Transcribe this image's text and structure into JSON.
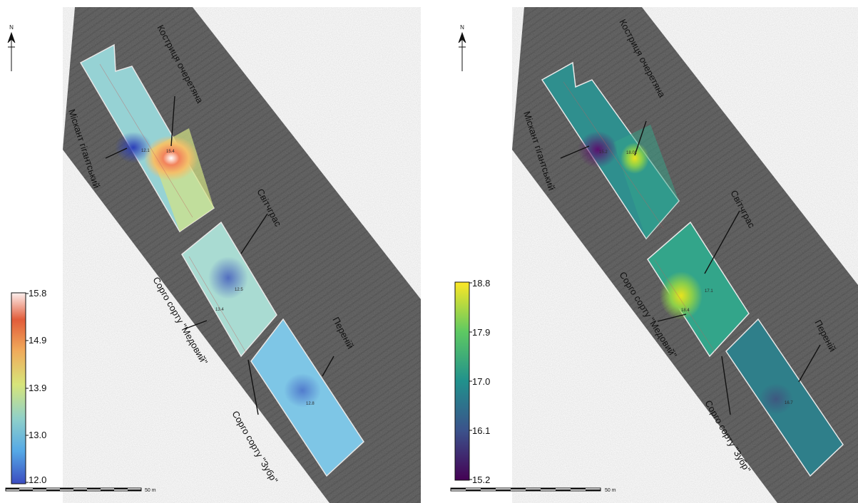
{
  "caption_text": "",
  "compass_letter": "N",
  "scale_label": "50 m",
  "colors": {
    "background": "#ffffff",
    "field_annotation": "#111111"
  },
  "panels": [
    {
      "id": "left",
      "legend": {
        "ticks": [
          "15.8",
          "14.9",
          "13.9",
          "13.0",
          "12.0"
        ],
        "colormap": [
          "#3b4cc0",
          "#55a8e6",
          "#8fd0c9",
          "#d7e57a",
          "#f0a95a",
          "#e25c3a",
          "#fdf0ee"
        ]
      },
      "labels": {
        "kostrytsia": "Костриця очеретяна",
        "miskantus": "Міскант гігантський",
        "svichgras": "Світчграс",
        "medovyi": "Сорго сорту \"Медовий\"",
        "perenii": "Пеpeнiй",
        "zubr": "Сорго сорту \"Зубр\""
      },
      "point_values": [
        "12.1",
        "15.4",
        "12.5",
        "13.4",
        "12.8"
      ]
    },
    {
      "id": "right",
      "legend": {
        "ticks": [
          "18.8",
          "17.9",
          "17.0",
          "16.1",
          "15.2"
        ],
        "colormap": [
          "#440154",
          "#3b528b",
          "#21918c",
          "#5ec962",
          "#fde725"
        ]
      },
      "labels": {
        "kostrytsia": "Костриця очеретяна",
        "miskantus": "Міскант гігантський",
        "svichgras": "Світчграс",
        "medovyi": "Сорго сорту \"Медовий\"",
        "perenii": "Пеpeнiй",
        "zubr": "Сорго сорту \"Зубр\""
      },
      "point_values": [
        "15.2",
        "18.02",
        "17.1",
        "18.4",
        "16.7"
      ]
    }
  ]
}
